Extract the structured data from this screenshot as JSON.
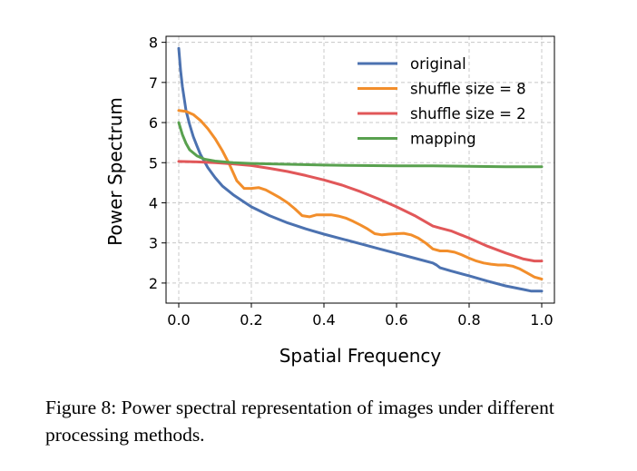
{
  "chart_data": {
    "type": "line",
    "xlabel": "Spatial Frequency",
    "ylabel": "Power Spectrum",
    "xlim": [
      -0.035,
      1.035
    ],
    "ylim": [
      1.5,
      8.15
    ],
    "xticks": [
      0.0,
      0.2,
      0.4,
      0.6,
      0.8,
      1.0
    ],
    "xtick_labels": [
      "0.0",
      "0.2",
      "0.4",
      "0.6",
      "0.8",
      "1.0"
    ],
    "yticks": [
      2,
      3,
      4,
      5,
      6,
      7,
      8
    ],
    "ytick_labels": [
      "2",
      "3",
      "4",
      "5",
      "6",
      "7",
      "8"
    ],
    "grid": true,
    "legend_position": "top-right",
    "series": [
      {
        "name": "original",
        "color": "#4c72b0",
        "x": [
          0.0,
          0.005,
          0.01,
          0.02,
          0.03,
          0.04,
          0.05,
          0.06,
          0.08,
          0.1,
          0.12,
          0.15,
          0.18,
          0.2,
          0.25,
          0.3,
          0.35,
          0.4,
          0.45,
          0.5,
          0.55,
          0.6,
          0.65,
          0.7,
          0.71,
          0.72,
          0.75,
          0.8,
          0.85,
          0.9,
          0.95,
          0.97,
          1.0
        ],
        "y": [
          7.85,
          7.3,
          6.9,
          6.3,
          5.95,
          5.65,
          5.42,
          5.2,
          4.88,
          4.63,
          4.42,
          4.2,
          4.02,
          3.9,
          3.68,
          3.5,
          3.35,
          3.22,
          3.1,
          2.98,
          2.86,
          2.74,
          2.62,
          2.5,
          2.45,
          2.38,
          2.3,
          2.18,
          2.05,
          1.93,
          1.84,
          1.8,
          1.8
        ]
      },
      {
        "name": "shuffle size = 8",
        "color": "#f28e2b",
        "x": [
          0.0,
          0.02,
          0.04,
          0.06,
          0.08,
          0.1,
          0.12,
          0.14,
          0.16,
          0.18,
          0.2,
          0.22,
          0.24,
          0.26,
          0.28,
          0.3,
          0.32,
          0.34,
          0.36,
          0.38,
          0.4,
          0.42,
          0.44,
          0.46,
          0.48,
          0.5,
          0.52,
          0.54,
          0.56,
          0.58,
          0.6,
          0.62,
          0.64,
          0.66,
          0.68,
          0.7,
          0.72,
          0.74,
          0.76,
          0.78,
          0.8,
          0.82,
          0.84,
          0.86,
          0.88,
          0.9,
          0.92,
          0.94,
          0.96,
          0.98,
          1.0
        ],
        "y": [
          6.3,
          6.28,
          6.2,
          6.05,
          5.85,
          5.6,
          5.3,
          4.95,
          4.55,
          4.36,
          4.36,
          4.38,
          4.32,
          4.22,
          4.12,
          4.0,
          3.85,
          3.68,
          3.65,
          3.7,
          3.7,
          3.7,
          3.67,
          3.62,
          3.54,
          3.45,
          3.35,
          3.23,
          3.2,
          3.22,
          3.23,
          3.24,
          3.2,
          3.12,
          3.0,
          2.85,
          2.8,
          2.8,
          2.77,
          2.7,
          2.62,
          2.55,
          2.5,
          2.47,
          2.45,
          2.45,
          2.42,
          2.35,
          2.25,
          2.15,
          2.1
        ]
      },
      {
        "name": "shuffle size = 2",
        "color": "#e15759",
        "x": [
          0.0,
          0.05,
          0.1,
          0.15,
          0.2,
          0.25,
          0.3,
          0.35,
          0.4,
          0.45,
          0.5,
          0.55,
          0.6,
          0.65,
          0.7,
          0.72,
          0.75,
          0.8,
          0.85,
          0.9,
          0.95,
          0.98,
          1.0
        ],
        "y": [
          5.03,
          5.02,
          5.0,
          4.97,
          4.93,
          4.86,
          4.78,
          4.68,
          4.57,
          4.44,
          4.28,
          4.1,
          3.9,
          3.68,
          3.42,
          3.37,
          3.3,
          3.12,
          2.92,
          2.75,
          2.6,
          2.55,
          2.55
        ]
      },
      {
        "name": "mapping",
        "color": "#59a14f",
        "x": [
          0.0,
          0.01,
          0.02,
          0.03,
          0.05,
          0.07,
          0.1,
          0.15,
          0.2,
          0.3,
          0.4,
          0.5,
          0.6,
          0.7,
          0.8,
          0.9,
          1.0
        ],
        "y": [
          6.0,
          5.7,
          5.48,
          5.32,
          5.17,
          5.09,
          5.04,
          5.0,
          4.98,
          4.96,
          4.94,
          4.93,
          4.92,
          4.92,
          4.91,
          4.9,
          4.9
        ]
      }
    ]
  },
  "caption": "Figure 8: Power spectral representation of images under different processing methods."
}
